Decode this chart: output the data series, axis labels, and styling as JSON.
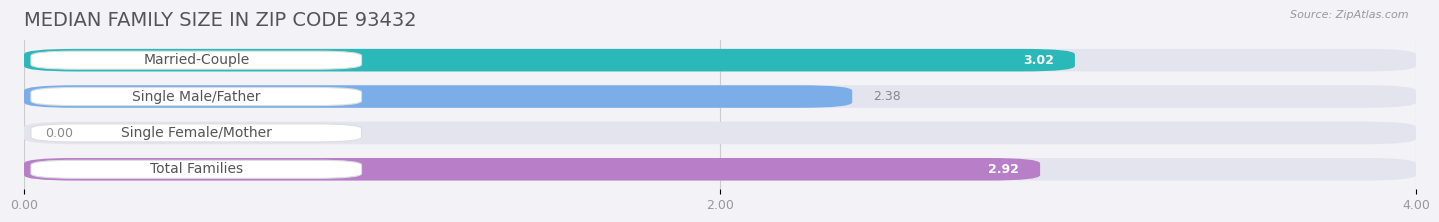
{
  "title": "MEDIAN FAMILY SIZE IN ZIP CODE 93432",
  "source": "Source: ZipAtlas.com",
  "categories": [
    "Married-Couple",
    "Single Male/Father",
    "Single Female/Mother",
    "Total Families"
  ],
  "values": [
    3.02,
    2.38,
    0.0,
    2.92
  ],
  "bar_colors": [
    "#2ab8b8",
    "#7baee8",
    "#f5a8bc",
    "#b87ec8"
  ],
  "xlim": [
    0,
    4.0
  ],
  "xticks": [
    0.0,
    2.0,
    4.0
  ],
  "xtick_labels": [
    "0.00",
    "2.00",
    "4.00"
  ],
  "background_color": "#f2f2f7",
  "bar_bg_color": "#e4e4ee",
  "label_bg_color": "#ffffff",
  "title_fontsize": 14,
  "label_fontsize": 10,
  "value_fontsize": 9,
  "value_inside_color": "#ffffff",
  "value_outside_color": "#888888"
}
